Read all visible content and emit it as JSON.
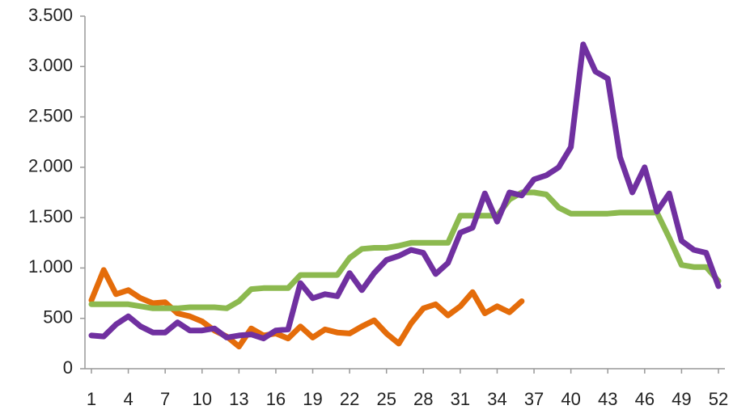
{
  "chart_data": {
    "type": "line",
    "categories": [
      1,
      null,
      null,
      4,
      null,
      null,
      7,
      null,
      null,
      10,
      null,
      null,
      13,
      null,
      null,
      16,
      null,
      null,
      19,
      null,
      null,
      22,
      null,
      null,
      25,
      null,
      null,
      28,
      null,
      null,
      31,
      null,
      null,
      34,
      null,
      null,
      37,
      null,
      null,
      40,
      null,
      null,
      43,
      null,
      null,
      46,
      null,
      null,
      49,
      null,
      null,
      52
    ],
    "ylim": [
      0,
      3500
    ],
    "yticks": [
      0,
      500,
      {
        "value": 1000,
        "label": "1.000"
      },
      {
        "value": 1500,
        "label": "1.500"
      },
      {
        "value": 2000,
        "label": "2.000"
      },
      {
        "value": 2500,
        "label": "2.500"
      },
      {
        "value": 3000,
        "label": "3.000"
      },
      {
        "value": 3500,
        "label": "3.500"
      }
    ],
    "grid": false,
    "series": [
      {
        "color": "#e46c0a",
        "values": [
          680,
          980,
          740,
          780,
          700,
          650,
          660,
          550,
          520,
          470,
          380,
          320,
          220,
          400,
          330,
          350,
          300,
          420,
          310,
          390,
          360,
          350,
          420,
          480,
          350,
          250,
          450,
          600,
          640,
          530,
          620,
          760,
          550,
          620,
          560,
          670,
          null,
          null,
          null,
          null,
          null,
          null,
          null,
          null,
          null,
          null,
          null,
          null,
          null,
          null,
          null,
          null
        ]
      },
      {
        "color": "#8cb94f",
        "values": [
          640,
          640,
          640,
          640,
          620,
          600,
          600,
          600,
          610,
          610,
          610,
          600,
          670,
          790,
          800,
          800,
          800,
          930,
          930,
          930,
          930,
          1100,
          1190,
          1200,
          1200,
          1220,
          1250,
          1250,
          1250,
          1250,
          1520,
          1520,
          1520,
          1520,
          1680,
          1750,
          1750,
          1730,
          1600,
          1540,
          1540,
          1540,
          1540,
          1550,
          1550,
          1550,
          1550,
          1300,
          1030,
          1010,
          1010,
          870
        ]
      },
      {
        "color": "#7030a0",
        "values": [
          330,
          320,
          440,
          520,
          420,
          360,
          360,
          460,
          380,
          380,
          400,
          310,
          330,
          340,
          300,
          380,
          390,
          850,
          700,
          740,
          720,
          950,
          780,
          950,
          1080,
          1120,
          1180,
          1150,
          940,
          1050,
          1350,
          1400,
          1740,
          1460,
          1750,
          1720,
          1880,
          1920,
          2000,
          2200,
          3220,
          2950,
          2880,
          2100,
          1750,
          2000,
          1560,
          1740,
          1270,
          1180,
          1150,
          820
        ]
      }
    ]
  }
}
